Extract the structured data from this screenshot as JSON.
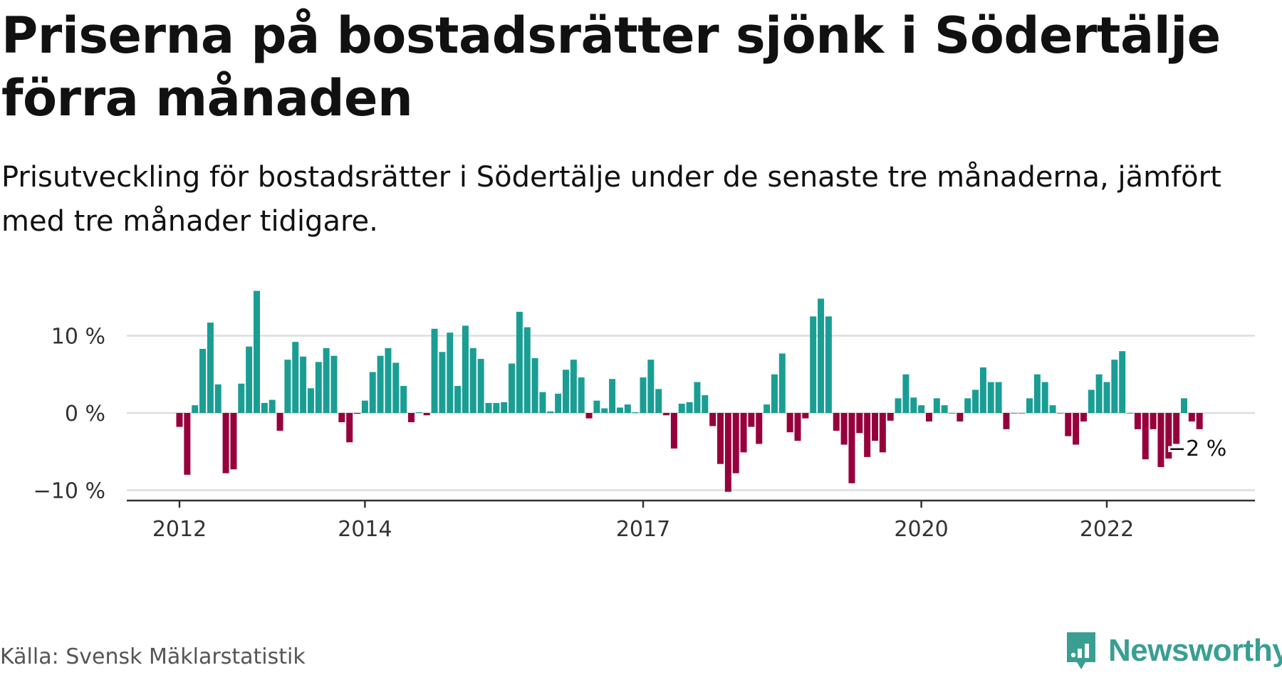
{
  "title": "Priserna på bostadsrätter sjönk i Södertälje förra månaden",
  "subtitle": "Prisutveckling för bostadsrätter i Södertälje under de senaste tre månaderna, jämfört med tre månader tidigare.",
  "source": "Källa: Svensk Mäklarstatistik",
  "brand": {
    "name": "Newsworthy",
    "icon": "newsworthy-logo-icon"
  },
  "colors": {
    "positive": "#1a9e94",
    "negative": "#96003c",
    "grid": "#dddddd",
    "axis": "#333333"
  },
  "chart_data": {
    "type": "bar",
    "x_start": "2012-01",
    "frequency": "monthly",
    "ylim": [
      -12,
      16
    ],
    "yticks": [
      {
        "value": 10,
        "label": "10 %"
      },
      {
        "value": 0,
        "label": "0 %"
      },
      {
        "value": -10,
        "label": "−10 %"
      }
    ],
    "xticks": [
      {
        "at": "2012-01",
        "label": "2012"
      },
      {
        "at": "2014-01",
        "label": "2014"
      },
      {
        "at": "2017-01",
        "label": "2017"
      },
      {
        "at": "2020-01",
        "label": "2020"
      },
      {
        "at": "2022-01",
        "label": "2022"
      }
    ],
    "values": [
      -1.8,
      -8.0,
      1.0,
      8.3,
      11.7,
      3.7,
      -7.8,
      -7.3,
      3.8,
      8.6,
      15.8,
      1.3,
      1.7,
      -2.3,
      6.9,
      9.2,
      7.3,
      3.2,
      6.6,
      8.4,
      7.4,
      -1.2,
      -3.8,
      -0.1,
      1.6,
      5.3,
      7.4,
      8.4,
      6.5,
      3.5,
      -1.2,
      0.1,
      -0.3,
      10.9,
      7.9,
      10.4,
      3.5,
      11.3,
      8.4,
      7.0,
      1.3,
      1.3,
      1.4,
      6.4,
      13.1,
      11.1,
      7.1,
      2.7,
      0.2,
      2.5,
      5.6,
      6.9,
      4.6,
      -0.7,
      1.6,
      0.6,
      4.4,
      0.7,
      1.1,
      0.1,
      4.6,
      6.9,
      3.1,
      -0.3,
      -4.6,
      1.2,
      1.4,
      4.0,
      2.3,
      -1.7,
      -6.6,
      -10.2,
      -7.8,
      -5.1,
      -1.8,
      -4.0,
      1.1,
      5.0,
      7.7,
      -2.5,
      -3.6,
      -0.7,
      12.5,
      14.8,
      12.5,
      -2.3,
      -4.1,
      -9.1,
      -2.6,
      -5.7,
      -3.6,
      -5.1,
      -1.0,
      1.9,
      5.0,
      2.0,
      1.0,
      -1.1,
      1.9,
      1.0,
      0.0,
      -1.1,
      1.9,
      3.0,
      5.9,
      4.0,
      4.0,
      -2.1,
      0.0,
      0.0,
      1.9,
      5.0,
      4.0,
      1.0,
      0.0,
      -3.0,
      -4.1,
      -1.1,
      3.0,
      5.0,
      4.0,
      6.9,
      8.0,
      0.0,
      -2.1,
      -6.0,
      -2.1,
      -7.0,
      -5.9,
      -4.0,
      1.9,
      -1.1,
      -2.1
    ],
    "last_label": "−2 %"
  }
}
